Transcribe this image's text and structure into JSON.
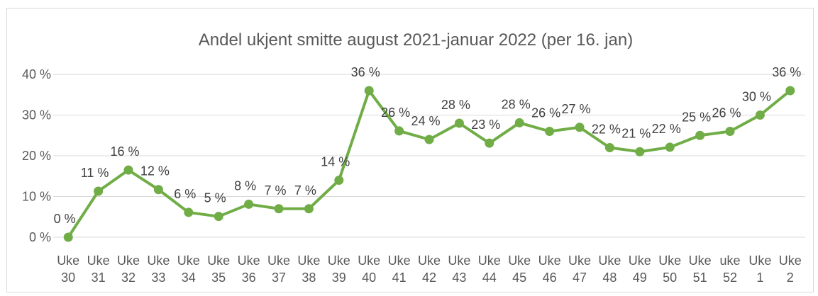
{
  "chart_data": {
    "type": "line",
    "title": "Andel ukjent smitte august 2021-januar 2022 (per 16. jan)",
    "xlabel": "",
    "ylabel": "",
    "ylim": [
      0,
      40
    ],
    "y_ticks": [
      "0 %",
      "10 %",
      "20 %",
      "30 %",
      "40 %"
    ],
    "grid": true,
    "legend": "none",
    "color": "#70ad47",
    "categories": [
      [
        "Uke",
        "30"
      ],
      [
        "Uke",
        "31"
      ],
      [
        "Uke",
        "32"
      ],
      [
        "Uke",
        "33"
      ],
      [
        "Uke",
        "34"
      ],
      [
        "Uke",
        "35"
      ],
      [
        "Uke",
        "36"
      ],
      [
        "Uke",
        "37"
      ],
      [
        "Uke",
        "38"
      ],
      [
        "Uke",
        "39"
      ],
      [
        "Uke",
        "40"
      ],
      [
        "Uke",
        "41"
      ],
      [
        "Uke",
        "42"
      ],
      [
        "Uke",
        "43"
      ],
      [
        "Uke",
        "44"
      ],
      [
        "Uke",
        "45"
      ],
      [
        "Uke",
        "46"
      ],
      [
        "Uke",
        "47"
      ],
      [
        "Uke",
        "48"
      ],
      [
        "Uke",
        "49"
      ],
      [
        "Uke",
        "50"
      ],
      [
        "Uke",
        "51"
      ],
      [
        "uke",
        "52"
      ],
      [
        "Uke",
        "1"
      ],
      [
        "Uke",
        "2"
      ]
    ],
    "values": [
      0,
      11.3,
      16.5,
      11.7,
      6.1,
      5.1,
      8.1,
      7.0,
      7.0,
      14.0,
      36.0,
      26.1,
      24.0,
      28.0,
      23.1,
      28.1,
      26.0,
      27.0,
      22.0,
      21.0,
      22.1,
      25.0,
      26.0,
      30.0,
      36.0
    ],
    "data_labels": [
      "0 %",
      "11 %",
      "16 %",
      "12 %",
      "6 %",
      "5 %",
      "8 %",
      "7 %",
      "7 %",
      "14 %",
      "36 %",
      "26 %",
      "24 %",
      "28 %",
      "23 %",
      "28 %",
      "26 %",
      "27 %",
      "22 %",
      "21 %",
      "22 %",
      "25 %",
      "26 %",
      "30 %",
      "36 %"
    ]
  }
}
